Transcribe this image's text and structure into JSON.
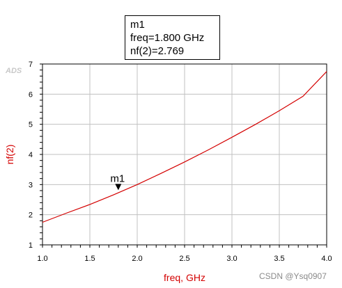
{
  "marker_readout": {
    "name": "m1",
    "freq_line": "freq=1.800 GHz",
    "value_line": "nf(2)=2.769"
  },
  "logo_text": "ADS",
  "watermark": "CSDN @Ysq0907",
  "colors": {
    "curve": "#d40000",
    "axis_label": "#d40000",
    "grid": "#c0c0c0",
    "frame": "#000000"
  },
  "chart_data": {
    "type": "line",
    "xlabel": "freq, GHz",
    "ylabel": "nf(2)",
    "xlim": [
      1.0,
      4.0
    ],
    "ylim": [
      1,
      7
    ],
    "x_ticks": [
      "1.0",
      "1.5",
      "2.0",
      "2.5",
      "3.0",
      "3.5",
      "4.0"
    ],
    "y_ticks": [
      "1",
      "2",
      "3",
      "4",
      "5",
      "6",
      "7"
    ],
    "grid": true,
    "series": [
      {
        "x": [
          1.0,
          1.25,
          1.5,
          1.75,
          2.0,
          2.25,
          2.5,
          2.75,
          3.0,
          3.25,
          3.5,
          3.75,
          4.0
        ],
        "y": [
          1.75,
          2.05,
          2.34,
          2.66,
          3.0,
          3.37,
          3.75,
          4.15,
          4.57,
          5.0,
          5.45,
          5.93,
          6.75
        ]
      }
    ],
    "markers": [
      {
        "label": "m1",
        "x": 1.8,
        "y": 2.769
      }
    ]
  }
}
